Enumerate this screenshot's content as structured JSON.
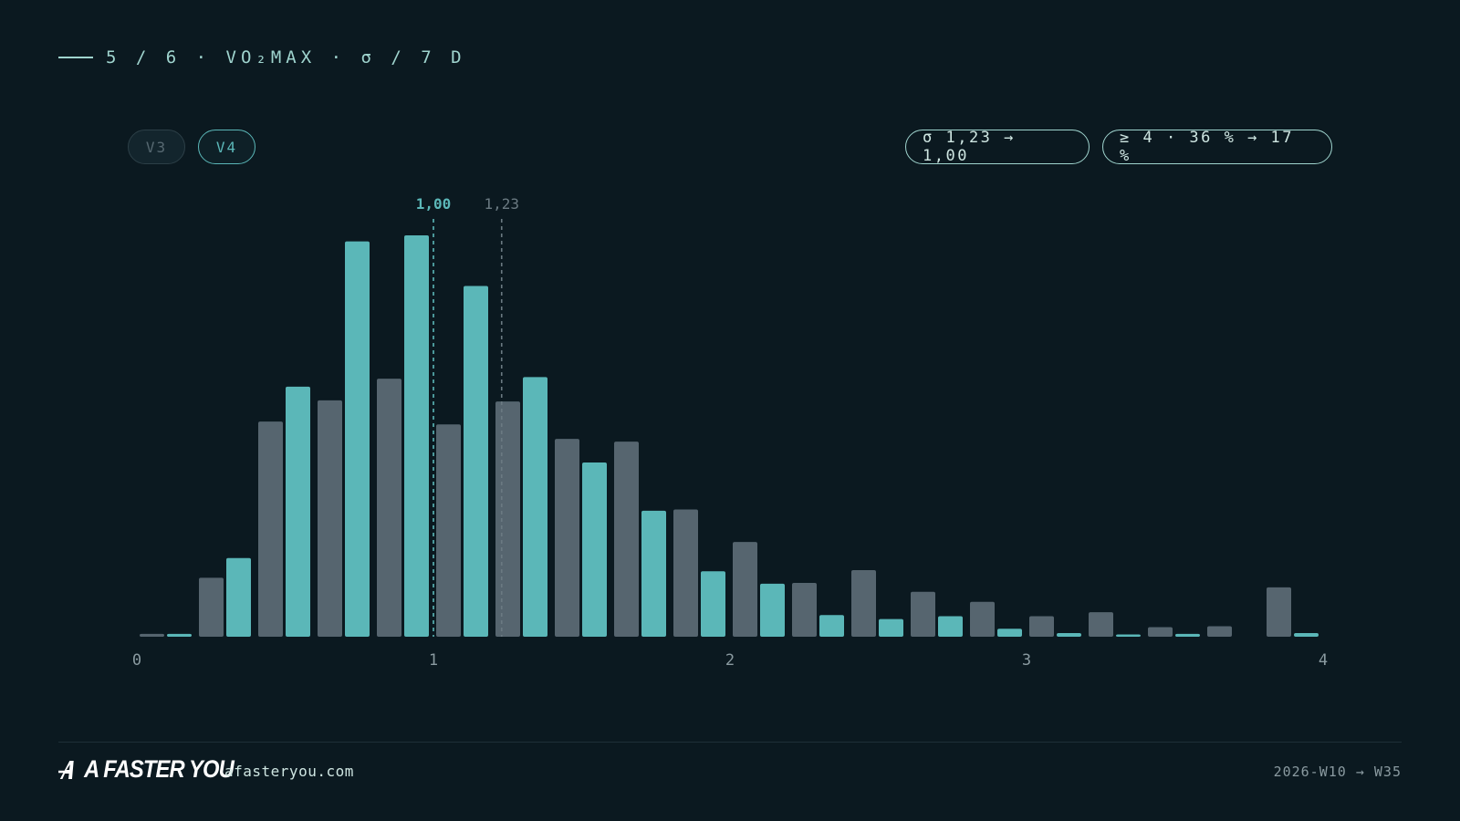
{
  "header": {
    "eyebrow": "5 / 6 · VO₂MAX · σ / 7 D"
  },
  "toggles": {
    "v3_label": "V3",
    "v4_label": "V4"
  },
  "stats": {
    "sigma": "σ 1,23 → 1,00",
    "tail": "≥ 4 · 36 % → 17 %"
  },
  "chart_data": {
    "type": "bar",
    "xlim": [
      0,
      4
    ],
    "x_ticks": [
      "0",
      "1",
      "2",
      "3",
      "4"
    ],
    "bin_width": 0.2,
    "bin_starts": [
      0.0,
      0.2,
      0.4,
      0.6,
      0.8,
      1.0,
      1.2,
      1.4,
      1.6,
      1.8,
      2.0,
      2.2,
      2.4,
      2.6,
      2.8,
      3.0,
      3.2,
      3.4,
      3.6,
      3.8
    ],
    "series": [
      {
        "name": "V3",
        "color": "#56656f",
        "values": [
          0.7,
          14.7,
          53.6,
          58.9,
          64.3,
          52.9,
          58.6,
          49.3,
          48.6,
          31.7,
          23.6,
          13.4,
          16.6,
          11.2,
          8.7,
          5.1,
          6.1,
          2.4,
          2.6,
          12.3
        ]
      },
      {
        "name": "V4",
        "color": "#5bb7b8",
        "values": [
          0.7,
          19.6,
          62.3,
          98.5,
          100.0,
          87.4,
          64.7,
          43.4,
          31.4,
          16.3,
          13.2,
          5.4,
          4.4,
          5.1,
          2.0,
          0.9,
          0.4,
          0.7,
          0,
          0.9
        ]
      }
    ],
    "markers": [
      {
        "label": "1,00",
        "x": 1.0,
        "color": "#5bb7b8"
      },
      {
        "label": "1,23",
        "x": 1.23,
        "color": "#6b7a82"
      }
    ]
  },
  "footer": {
    "brand": "A FASTER YOU",
    "site": "afasteryou.com",
    "range": "2026-W10 → W35"
  }
}
